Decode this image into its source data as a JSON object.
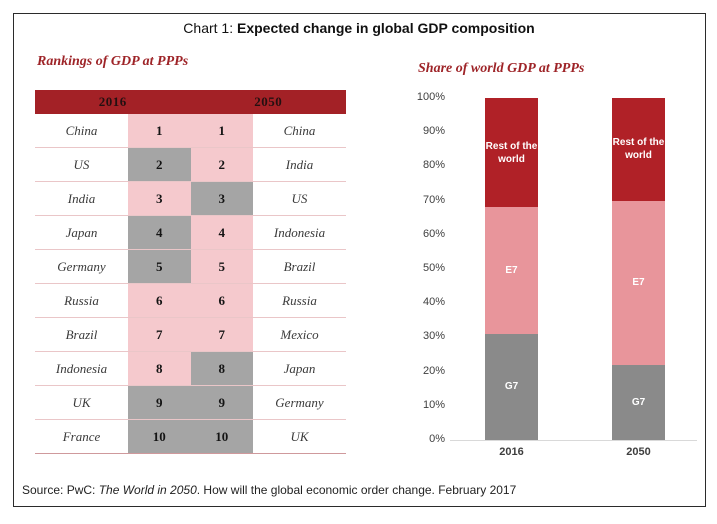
{
  "page": {
    "title_prefix": "Chart 1: ",
    "title_main": "Expected change in global GDP composition"
  },
  "left_panel": {
    "title": "Rankings of GDP at PPPs",
    "header": {
      "col_2016": "2016",
      "col_2050": "2050"
    },
    "rows": [
      {
        "country_2016": "China",
        "rank_2016": "1",
        "group_2016": "e7",
        "rank_2050": "1",
        "group_2050": "e7",
        "country_2050": "China"
      },
      {
        "country_2016": "US",
        "rank_2016": "2",
        "group_2016": "g7",
        "rank_2050": "2",
        "group_2050": "e7",
        "country_2050": "India"
      },
      {
        "country_2016": "India",
        "rank_2016": "3",
        "group_2016": "e7",
        "rank_2050": "3",
        "group_2050": "g7",
        "country_2050": "US"
      },
      {
        "country_2016": "Japan",
        "rank_2016": "4",
        "group_2016": "g7",
        "rank_2050": "4",
        "group_2050": "e7",
        "country_2050": "Indonesia"
      },
      {
        "country_2016": "Germany",
        "rank_2016": "5",
        "group_2016": "g7",
        "rank_2050": "5",
        "group_2050": "e7",
        "country_2050": "Brazil"
      },
      {
        "country_2016": "Russia",
        "rank_2016": "6",
        "group_2016": "e7",
        "rank_2050": "6",
        "group_2050": "e7",
        "country_2050": "Russia"
      },
      {
        "country_2016": "Brazil",
        "rank_2016": "7",
        "group_2016": "e7",
        "rank_2050": "7",
        "group_2050": "e7",
        "country_2050": "Mexico"
      },
      {
        "country_2016": "Indonesia",
        "rank_2016": "8",
        "group_2016": "e7",
        "rank_2050": "8",
        "group_2050": "g7",
        "country_2050": "Japan"
      },
      {
        "country_2016": "UK",
        "rank_2016": "9",
        "group_2016": "g7",
        "rank_2050": "9",
        "group_2050": "g7",
        "country_2050": "Germany"
      },
      {
        "country_2016": "France",
        "rank_2016": "10",
        "group_2016": "g7",
        "rank_2050": "10",
        "group_2050": "g7",
        "country_2050": "UK"
      }
    ]
  },
  "right_panel": {
    "title": "Share of world GDP at PPPs"
  },
  "chart_data": {
    "type": "bar",
    "stacked": true,
    "title": "Share of world GDP at PPPs",
    "categories": [
      "2016",
      "2050"
    ],
    "series": [
      {
        "name": "G7",
        "values": [
          31,
          22
        ],
        "color": "#8a8a8a",
        "label_color": "#ffffff"
      },
      {
        "name": "E7",
        "values": [
          37,
          48
        ],
        "color": "#e8959b",
        "label_color": "#ffffff"
      },
      {
        "name": "Rest of the world",
        "values": [
          32,
          30
        ],
        "color": "#b02127",
        "label_color": "#ffffff"
      }
    ],
    "xlabel": "",
    "ylabel": "",
    "ylim": [
      0,
      100
    ],
    "y_ticks": [
      "0%",
      "10%",
      "20%",
      "30%",
      "40%",
      "50%",
      "60%",
      "70%",
      "80%",
      "90%",
      "100%"
    ],
    "grid": false,
    "legend_position": "labels-inside-bars"
  },
  "colors": {
    "header_red": "#a32126",
    "rest_red": "#b02127",
    "e7_pink_cell": "#f5c9cd",
    "e7_pink_bar": "#e8959b",
    "g7_gray_cell": "#a5a5a5",
    "g7_gray_bar": "#8a8a8a",
    "accent_text": "#9e2428"
  },
  "footer": {
    "prefix": "Source: PwC: ",
    "italic": "The World in 2050",
    "suffix": ". How will the global economic order change. February 2017"
  }
}
